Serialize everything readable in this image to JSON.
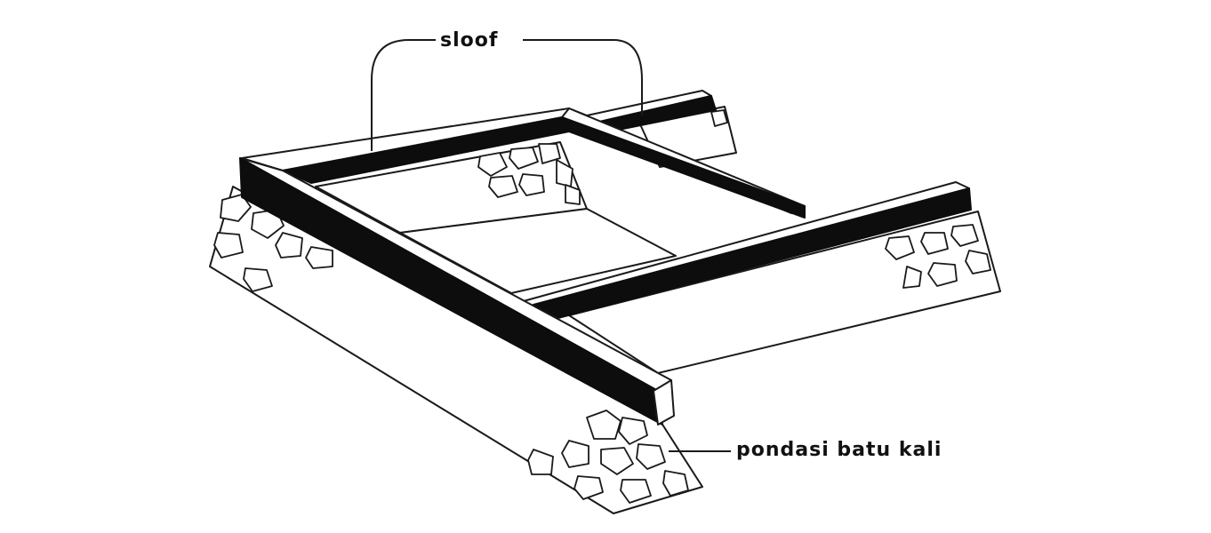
{
  "labels": {
    "sloof": "sloof",
    "pondasi": "pondasi batu kali"
  },
  "colors": {
    "ink": "#111111",
    "beam": "#0d0d0d",
    "paper": "#ffffff"
  }
}
